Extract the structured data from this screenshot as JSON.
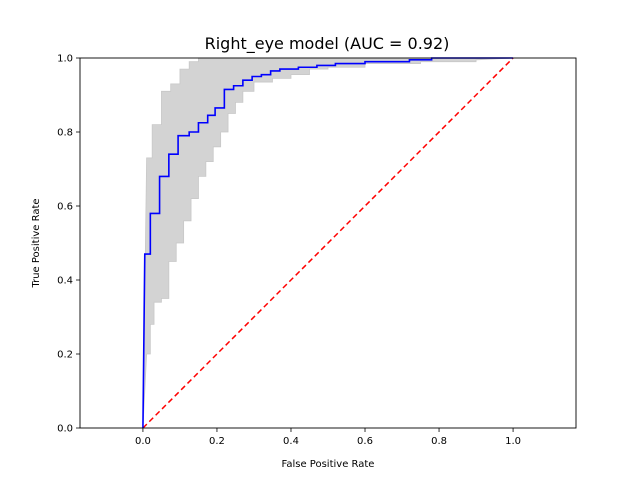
{
  "chart_data": {
    "type": "line",
    "title": "Right_eye model (AUC = 0.92)",
    "xlabel": "False Positive Rate",
    "ylabel": "True Positive Rate",
    "xlim": [
      -0.17,
      1.17
    ],
    "ylim": [
      0.0,
      1.0
    ],
    "x_ticks": [
      0.0,
      0.2,
      0.4,
      0.6,
      0.8,
      1.0
    ],
    "x_tick_labels": [
      "0.0",
      "0.2",
      "0.4",
      "0.6",
      "0.8",
      "1.0"
    ],
    "y_ticks": [
      0.0,
      0.2,
      0.4,
      0.6,
      0.8,
      1.0
    ],
    "y_tick_labels": [
      "0.0",
      "0.2",
      "0.4",
      "0.6",
      "0.8",
      "1.0"
    ],
    "grid": false,
    "colors": {
      "roc_curve": "#0000ff",
      "chance_line": "#ff0000",
      "confidence_band": "#d3d3d3"
    },
    "series": [
      {
        "kind": "roc_curve",
        "points": [
          [
            0.0,
            0.0
          ],
          [
            0.005,
            0.47
          ],
          [
            0.02,
            0.47
          ],
          [
            0.02,
            0.58
          ],
          [
            0.045,
            0.58
          ],
          [
            0.045,
            0.68
          ],
          [
            0.07,
            0.68
          ],
          [
            0.07,
            0.74
          ],
          [
            0.095,
            0.74
          ],
          [
            0.095,
            0.79
          ],
          [
            0.125,
            0.79
          ],
          [
            0.125,
            0.8
          ],
          [
            0.15,
            0.8
          ],
          [
            0.15,
            0.825
          ],
          [
            0.175,
            0.825
          ],
          [
            0.175,
            0.845
          ],
          [
            0.195,
            0.845
          ],
          [
            0.195,
            0.865
          ],
          [
            0.22,
            0.865
          ],
          [
            0.22,
            0.915
          ],
          [
            0.245,
            0.915
          ],
          [
            0.245,
            0.925
          ],
          [
            0.27,
            0.925
          ],
          [
            0.27,
            0.94
          ],
          [
            0.295,
            0.94
          ],
          [
            0.295,
            0.95
          ],
          [
            0.32,
            0.95
          ],
          [
            0.32,
            0.955
          ],
          [
            0.345,
            0.955
          ],
          [
            0.345,
            0.965
          ],
          [
            0.37,
            0.965
          ],
          [
            0.37,
            0.97
          ],
          [
            0.42,
            0.97
          ],
          [
            0.42,
            0.975
          ],
          [
            0.47,
            0.975
          ],
          [
            0.47,
            0.98
          ],
          [
            0.52,
            0.98
          ],
          [
            0.52,
            0.985
          ],
          [
            0.6,
            0.985
          ],
          [
            0.6,
            0.99
          ],
          [
            0.72,
            0.99
          ],
          [
            0.72,
            0.995
          ],
          [
            0.78,
            0.995
          ],
          [
            0.78,
            1.0
          ],
          [
            1.0,
            1.0
          ]
        ]
      },
      {
        "kind": "chance_line",
        "points": [
          [
            0.0,
            0.0
          ],
          [
            1.0,
            1.0
          ]
        ]
      }
    ],
    "band": {
      "upper": [
        [
          0.0,
          0.0
        ],
        [
          0.01,
          0.73
        ],
        [
          0.025,
          0.73
        ],
        [
          0.025,
          0.82
        ],
        [
          0.05,
          0.82
        ],
        [
          0.05,
          0.91
        ],
        [
          0.075,
          0.91
        ],
        [
          0.075,
          0.93
        ],
        [
          0.1,
          0.93
        ],
        [
          0.1,
          0.97
        ],
        [
          0.125,
          0.97
        ],
        [
          0.125,
          0.99
        ],
        [
          0.15,
          0.99
        ],
        [
          0.15,
          1.0
        ],
        [
          1.0,
          1.0
        ]
      ],
      "lower": [
        [
          1.0,
          1.0
        ],
        [
          0.9,
          0.995
        ],
        [
          0.9,
          0.99
        ],
        [
          0.75,
          0.99
        ],
        [
          0.75,
          0.985
        ],
        [
          0.6,
          0.985
        ],
        [
          0.6,
          0.975
        ],
        [
          0.5,
          0.975
        ],
        [
          0.5,
          0.97
        ],
        [
          0.45,
          0.97
        ],
        [
          0.45,
          0.955
        ],
        [
          0.4,
          0.955
        ],
        [
          0.4,
          0.945
        ],
        [
          0.35,
          0.945
        ],
        [
          0.35,
          0.935
        ],
        [
          0.3,
          0.935
        ],
        [
          0.3,
          0.91
        ],
        [
          0.27,
          0.91
        ],
        [
          0.27,
          0.88
        ],
        [
          0.25,
          0.88
        ],
        [
          0.25,
          0.85
        ],
        [
          0.23,
          0.85
        ],
        [
          0.23,
          0.8
        ],
        [
          0.21,
          0.8
        ],
        [
          0.21,
          0.76
        ],
        [
          0.19,
          0.76
        ],
        [
          0.19,
          0.72
        ],
        [
          0.17,
          0.72
        ],
        [
          0.17,
          0.68
        ],
        [
          0.15,
          0.68
        ],
        [
          0.15,
          0.62
        ],
        [
          0.13,
          0.62
        ],
        [
          0.13,
          0.56
        ],
        [
          0.11,
          0.56
        ],
        [
          0.11,
          0.5
        ],
        [
          0.09,
          0.5
        ],
        [
          0.09,
          0.45
        ],
        [
          0.07,
          0.45
        ],
        [
          0.07,
          0.35
        ],
        [
          0.05,
          0.35
        ],
        [
          0.05,
          0.34
        ],
        [
          0.03,
          0.34
        ],
        [
          0.03,
          0.28
        ],
        [
          0.02,
          0.28
        ],
        [
          0.02,
          0.2
        ],
        [
          0.01,
          0.2
        ],
        [
          0.0,
          0.0
        ]
      ]
    }
  }
}
